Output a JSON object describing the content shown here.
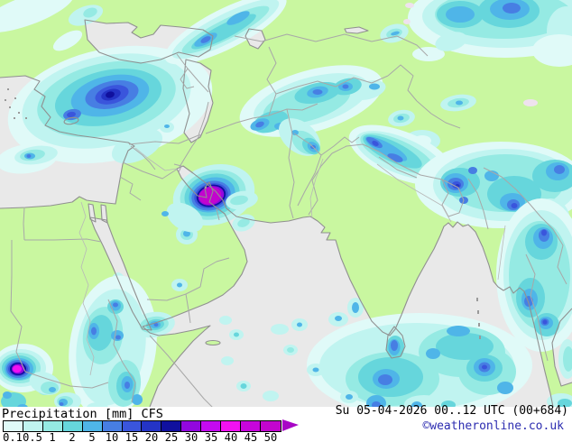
{
  "legend": {
    "variable": "Precipitation",
    "unit": "[mm]",
    "model": "CFS",
    "steps": [
      {
        "label": "0.1",
        "color": "#E0FAF8"
      },
      {
        "label": "0.5",
        "color": "#C0F4F0"
      },
      {
        "label": "1",
        "color": "#95EAE3"
      },
      {
        "label": "2",
        "color": "#66D6DC"
      },
      {
        "label": "5",
        "color": "#4FB5E8"
      },
      {
        "label": "10",
        "color": "#477EE3"
      },
      {
        "label": "15",
        "color": "#3A55DC"
      },
      {
        "label": "20",
        "color": "#2434C6"
      },
      {
        "label": "25",
        "color": "#10109E"
      },
      {
        "label": "30",
        "color": "#9207DF"
      },
      {
        "label": "35",
        "color": "#C40AF0"
      },
      {
        "label": "40",
        "color": "#F211F2"
      },
      {
        "label": "45",
        "color": "#C705DB"
      },
      {
        "label": "50",
        "color": "#C205CE"
      }
    ],
    "arrow_color": "#A806C6"
  },
  "footer": {
    "datetime": "Su 05-04-2026 00..12 UTC (00+684)",
    "copyright": "©weatheronline.co.uk"
  },
  "map_colors": {
    "land": "#C9F7A0",
    "sea": "#E9E9E9",
    "coastline": "#909090",
    "country_border": "#A8A8A8"
  }
}
